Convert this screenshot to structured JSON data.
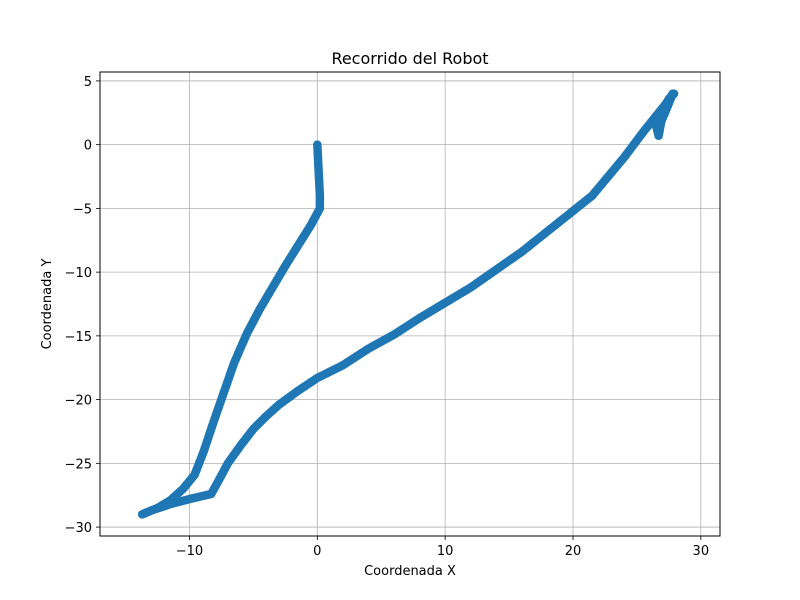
{
  "chart_data": {
    "type": "scatter",
    "title": "Recorrido del Robot",
    "xlabel": "Coordenada X",
    "ylabel": "Coordenada Y",
    "xlim": [
      -17,
      31.5
    ],
    "ylim": [
      -30.7,
      5.7
    ],
    "xticks": [
      -10,
      0,
      10,
      20,
      30
    ],
    "yticks": [
      5,
      0,
      -5,
      -10,
      -15,
      -20,
      -25,
      -30
    ],
    "xtick_labels": [
      "−10",
      "0",
      "10",
      "20",
      "30"
    ],
    "ytick_labels": [
      "5",
      "0",
      "−5",
      "−10",
      "−15",
      "−20",
      "−25",
      "−30"
    ],
    "grid": true,
    "marker_color": "#1f77b4",
    "series": [
      {
        "path": [
          [
            0,
            0
          ],
          [
            0.05,
            -1
          ],
          [
            0.1,
            -2
          ],
          [
            0.15,
            -3
          ],
          [
            0.2,
            -4
          ],
          [
            0.2,
            -5
          ],
          [
            -0.5,
            -6.3
          ],
          [
            -1.5,
            -7.9
          ],
          [
            -2.5,
            -9.5
          ],
          [
            -3.5,
            -11.2
          ],
          [
            -4.5,
            -12.9
          ],
          [
            -5.5,
            -14.8
          ],
          [
            -6.5,
            -17.1
          ],
          [
            -7.3,
            -19.4
          ],
          [
            -8.1,
            -21.7
          ],
          [
            -8.9,
            -24.1
          ],
          [
            -9.6,
            -25.9
          ],
          [
            -10.5,
            -27.0
          ],
          [
            -11.5,
            -27.9
          ],
          [
            -12.5,
            -28.5
          ],
          [
            -13.7,
            -29.0
          ],
          [
            -13.0,
            -28.7
          ],
          [
            -11.5,
            -28.2
          ],
          [
            -10.0,
            -27.8
          ],
          [
            -8.3,
            -27.4
          ],
          [
            -7.8,
            -26.5
          ],
          [
            -7.0,
            -25.0
          ],
          [
            -6.0,
            -23.6
          ],
          [
            -5.0,
            -22.3
          ],
          [
            -4.0,
            -21.3
          ],
          [
            -3.0,
            -20.4
          ],
          [
            -1.5,
            -19.3
          ],
          [
            0,
            -18.3
          ],
          [
            2.0,
            -17.3
          ],
          [
            4.0,
            -16.0
          ],
          [
            6.0,
            -14.9
          ],
          [
            8.0,
            -13.6
          ],
          [
            10.0,
            -12.4
          ],
          [
            12.0,
            -11.2
          ],
          [
            14.0,
            -9.8
          ],
          [
            16.0,
            -8.4
          ],
          [
            18.0,
            -6.8
          ],
          [
            20.0,
            -5.2
          ],
          [
            21.5,
            -4.0
          ],
          [
            22.5,
            -2.8
          ],
          [
            24.0,
            -1.0
          ],
          [
            25.5,
            1.0
          ],
          [
            26.7,
            2.5
          ],
          [
            27.5,
            3.5
          ],
          [
            27.8,
            4.0
          ],
          [
            27.4,
            3.0
          ],
          [
            26.9,
            1.8
          ],
          [
            26.7,
            0.7
          ],
          [
            26.5,
            1.5
          ],
          [
            26.8,
            2.3
          ],
          [
            27.5,
            3.6
          ],
          [
            27.9,
            4.0
          ]
        ]
      }
    ]
  }
}
